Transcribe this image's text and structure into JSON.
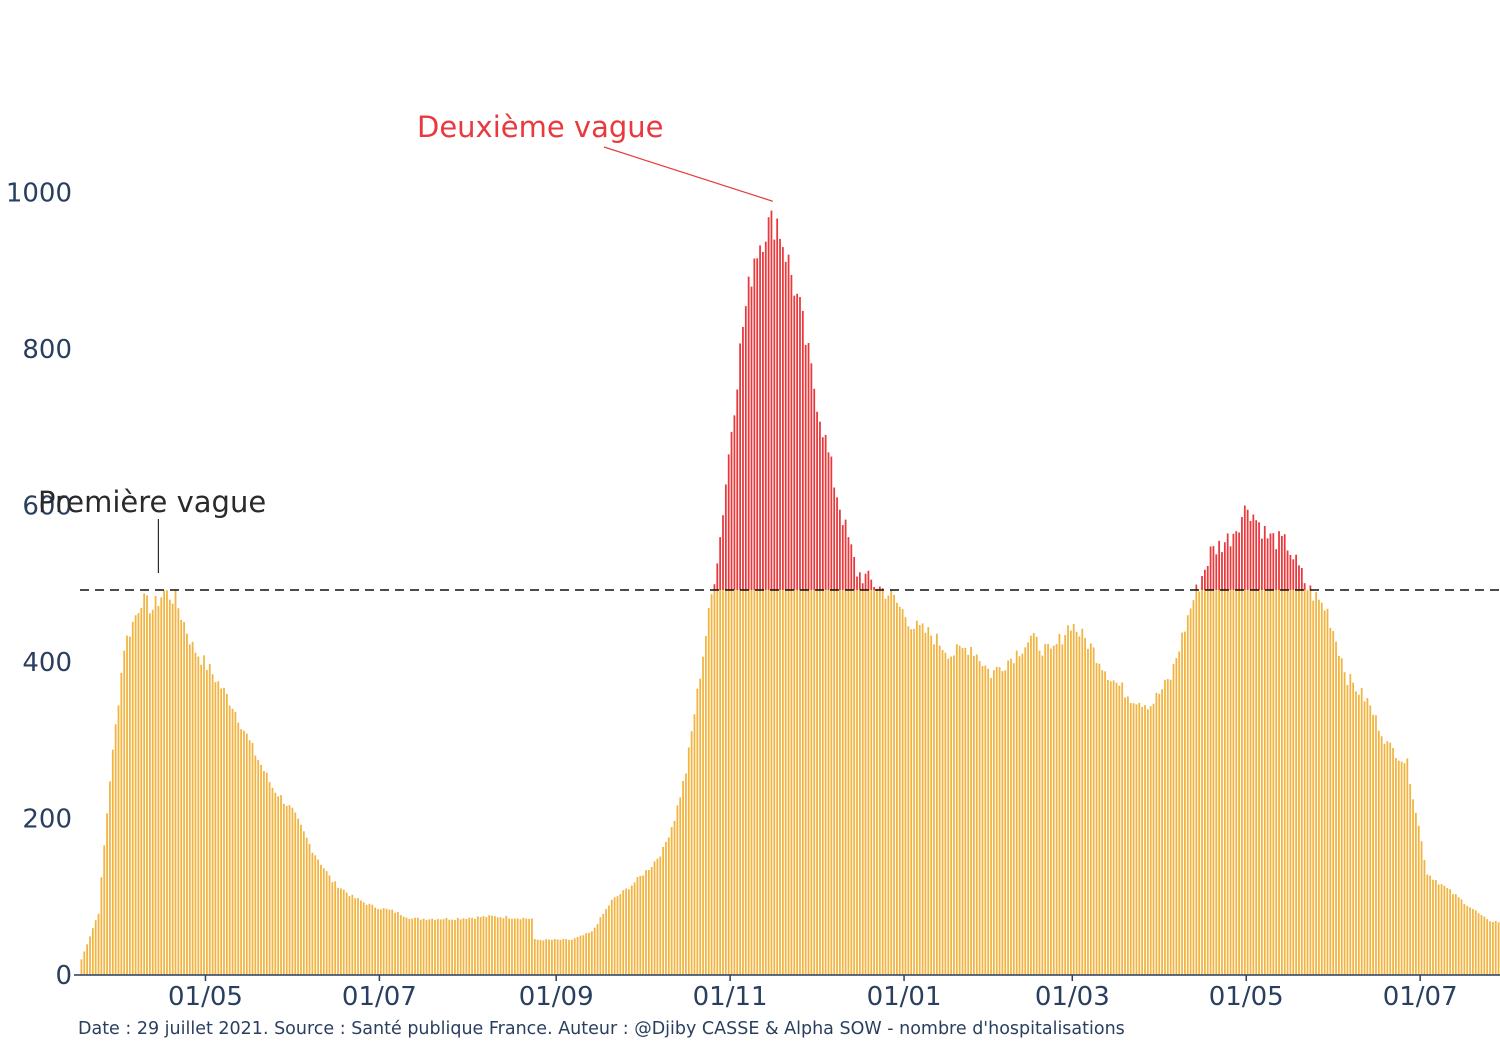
{
  "chart_data": {
    "type": "bar",
    "title": "",
    "xlabel": "",
    "ylabel": "",
    "ylim": [
      0,
      1100
    ],
    "yticks": [
      0,
      200,
      400,
      600,
      800,
      1000
    ],
    "y_tick_labels": [
      "0",
      "200",
      "400",
      "600",
      "800",
      "1000"
    ],
    "x_start": "2020-03-18",
    "x_end": "2021-07-28",
    "x_tick_dates": [
      "2020-05-01",
      "2020-07-01",
      "2020-09-01",
      "2020-11-01",
      "2021-01-01",
      "2021-03-01",
      "2021-05-01",
      "2021-07-01"
    ],
    "x_tick_labels": [
      "01/05",
      "01/07",
      "01/09",
      "01/11",
      "01/01",
      "01/03",
      "01/05",
      "01/07"
    ],
    "threshold": 492,
    "colors": {
      "below_threshold": "#f2b441",
      "above_threshold": "#e8393d",
      "threshold_line": "#111111",
      "axis": "#2a3f5f"
    },
    "keypoints": [
      [
        "2020-03-18",
        20
      ],
      [
        "2020-03-24",
        80
      ],
      [
        "2020-03-28",
        250
      ],
      [
        "2020-04-02",
        420
      ],
      [
        "2020-04-08",
        480
      ],
      [
        "2020-04-12",
        468
      ],
      [
        "2020-04-16",
        490
      ],
      [
        "2020-04-20",
        480
      ],
      [
        "2020-04-26",
        420
      ],
      [
        "2020-05-03",
        385
      ],
      [
        "2020-05-10",
        345
      ],
      [
        "2020-05-17",
        290
      ],
      [
        "2020-05-24",
        240
      ],
      [
        "2020-05-31",
        210
      ],
      [
        "2020-06-07",
        160
      ],
      [
        "2020-06-14",
        120
      ],
      [
        "2020-06-21",
        100
      ],
      [
        "2020-06-28",
        88
      ],
      [
        "2020-07-05",
        82
      ],
      [
        "2020-07-12",
        72
      ],
      [
        "2020-07-26",
        72
      ],
      [
        "2020-08-09",
        75
      ],
      [
        "2020-08-23",
        72
      ],
      [
        "2020-08-24",
        45
      ],
      [
        "2020-09-06",
        45
      ],
      [
        "2020-09-13",
        55
      ],
      [
        "2020-09-20",
        95
      ],
      [
        "2020-09-27",
        115
      ],
      [
        "2020-10-04",
        140
      ],
      [
        "2020-10-08",
        160
      ],
      [
        "2020-10-12",
        200
      ],
      [
        "2020-10-16",
        260
      ],
      [
        "2020-10-20",
        360
      ],
      [
        "2020-10-24",
        460
      ],
      [
        "2020-10-28",
        560
      ],
      [
        "2020-11-01",
        700
      ],
      [
        "2020-11-05",
        830
      ],
      [
        "2020-11-09",
        920
      ],
      [
        "2020-11-13",
        955
      ],
      [
        "2020-11-17",
        965
      ],
      [
        "2020-11-21",
        910
      ],
      [
        "2020-11-25",
        850
      ],
      [
        "2020-11-29",
        770
      ],
      [
        "2020-12-03",
        700
      ],
      [
        "2020-12-07",
        630
      ],
      [
        "2020-12-11",
        570
      ],
      [
        "2020-12-15",
        515
      ],
      [
        "2020-12-21",
        500
      ],
      [
        "2020-12-27",
        485
      ],
      [
        "2021-01-04",
        445
      ],
      [
        "2021-01-10",
        435
      ],
      [
        "2021-01-17",
        410
      ],
      [
        "2021-01-24",
        420
      ],
      [
        "2021-01-31",
        385
      ],
      [
        "2021-02-07",
        405
      ],
      [
        "2021-02-14",
        430
      ],
      [
        "2021-02-21",
        410
      ],
      [
        "2021-02-28",
        450
      ],
      [
        "2021-03-07",
        420
      ],
      [
        "2021-03-14",
        380
      ],
      [
        "2021-03-21",
        355
      ],
      [
        "2021-03-28",
        345
      ],
      [
        "2021-04-04",
        380
      ],
      [
        "2021-04-11",
        470
      ],
      [
        "2021-04-18",
        540
      ],
      [
        "2021-04-25",
        560
      ],
      [
        "2021-05-01",
        600
      ],
      [
        "2021-05-08",
        560
      ],
      [
        "2021-05-15",
        550
      ],
      [
        "2021-05-22",
        495
      ],
      [
        "2021-05-29",
        465
      ],
      [
        "2021-06-05",
        380
      ],
      [
        "2021-06-12",
        350
      ],
      [
        "2021-06-19",
        295
      ],
      [
        "2021-06-26",
        270
      ],
      [
        "2021-07-03",
        130
      ],
      [
        "2021-07-10",
        110
      ],
      [
        "2021-07-17",
        90
      ],
      [
        "2021-07-24",
        70
      ],
      [
        "2021-07-28",
        68
      ]
    ],
    "annotations": [
      {
        "text": "Première vague",
        "date": "2020-04-14",
        "value": 510
      },
      {
        "text": "Deuxième vague",
        "date": "2020-11-12",
        "value": 990
      }
    ]
  },
  "caption": "Date : 29 juillet 2021. Source : Santé publique France. Auteur : @Djiby CASSE & Alpha SOW - nombre d'hospitalisations"
}
